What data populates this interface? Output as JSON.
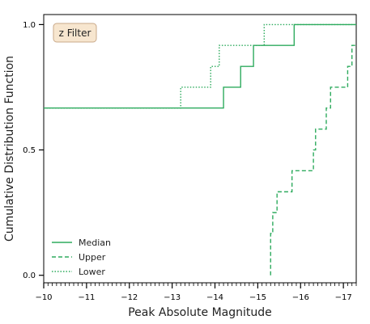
{
  "chart_data": {
    "type": "line",
    "step": true,
    "annotation": "z Filter",
    "xlabel": "Peak Absolute Magnitude",
    "ylabel": "Cumulative Distribution Function",
    "xlim": [
      -10,
      -17.3
    ],
    "ylim": [
      -0.03,
      1.04
    ],
    "x_inverted": true,
    "xticks": [
      -10,
      -11,
      -12,
      -13,
      -14,
      -15,
      -16,
      -17
    ],
    "xtick_labels": [
      "−10",
      "−11",
      "−12",
      "−13",
      "−14",
      "−15",
      "−16",
      "−17"
    ],
    "yticks": [
      0.0,
      0.5,
      1.0
    ],
    "ytick_labels": [
      "0.0",
      "0.5",
      "1.0"
    ],
    "grid": false,
    "legend_position": "lower-left",
    "line_color": "#2eab5e",
    "series": [
      {
        "name": "Median",
        "style": "solid",
        "x": [
          -10,
          -14.2,
          -14.2,
          -14.6,
          -14.6,
          -14.9,
          -14.9,
          -15.85,
          -15.85,
          -17.3
        ],
        "y": [
          0.667,
          0.667,
          0.75,
          0.75,
          0.833,
          0.833,
          0.917,
          0.917,
          1.0,
          1.0
        ]
      },
      {
        "name": "Upper",
        "style": "dashed",
        "x": [
          -15.3,
          -15.3,
          -15.3,
          -15.35,
          -15.35,
          -15.45,
          -15.45,
          -15.8,
          -15.8,
          -16.3,
          -16.3,
          -16.35,
          -16.35,
          -16.6,
          -16.6,
          -16.7,
          -16.7,
          -17.1,
          -17.1,
          -17.2,
          -17.2,
          -17.3
        ],
        "y": [
          0.0,
          0.083,
          0.167,
          0.167,
          0.25,
          0.25,
          0.333,
          0.333,
          0.417,
          0.417,
          0.5,
          0.5,
          0.583,
          0.583,
          0.667,
          0.667,
          0.75,
          0.75,
          0.833,
          0.833,
          0.917,
          0.917
        ]
      },
      {
        "name": "Lower",
        "style": "dotted",
        "x": [
          -10,
          -13.2,
          -13.2,
          -13.9,
          -13.9,
          -14.1,
          -14.1,
          -15.15,
          -15.15,
          -17.3
        ],
        "y": [
          0.667,
          0.667,
          0.75,
          0.75,
          0.833,
          0.833,
          0.917,
          0.917,
          1.0,
          1.0
        ]
      }
    ]
  }
}
